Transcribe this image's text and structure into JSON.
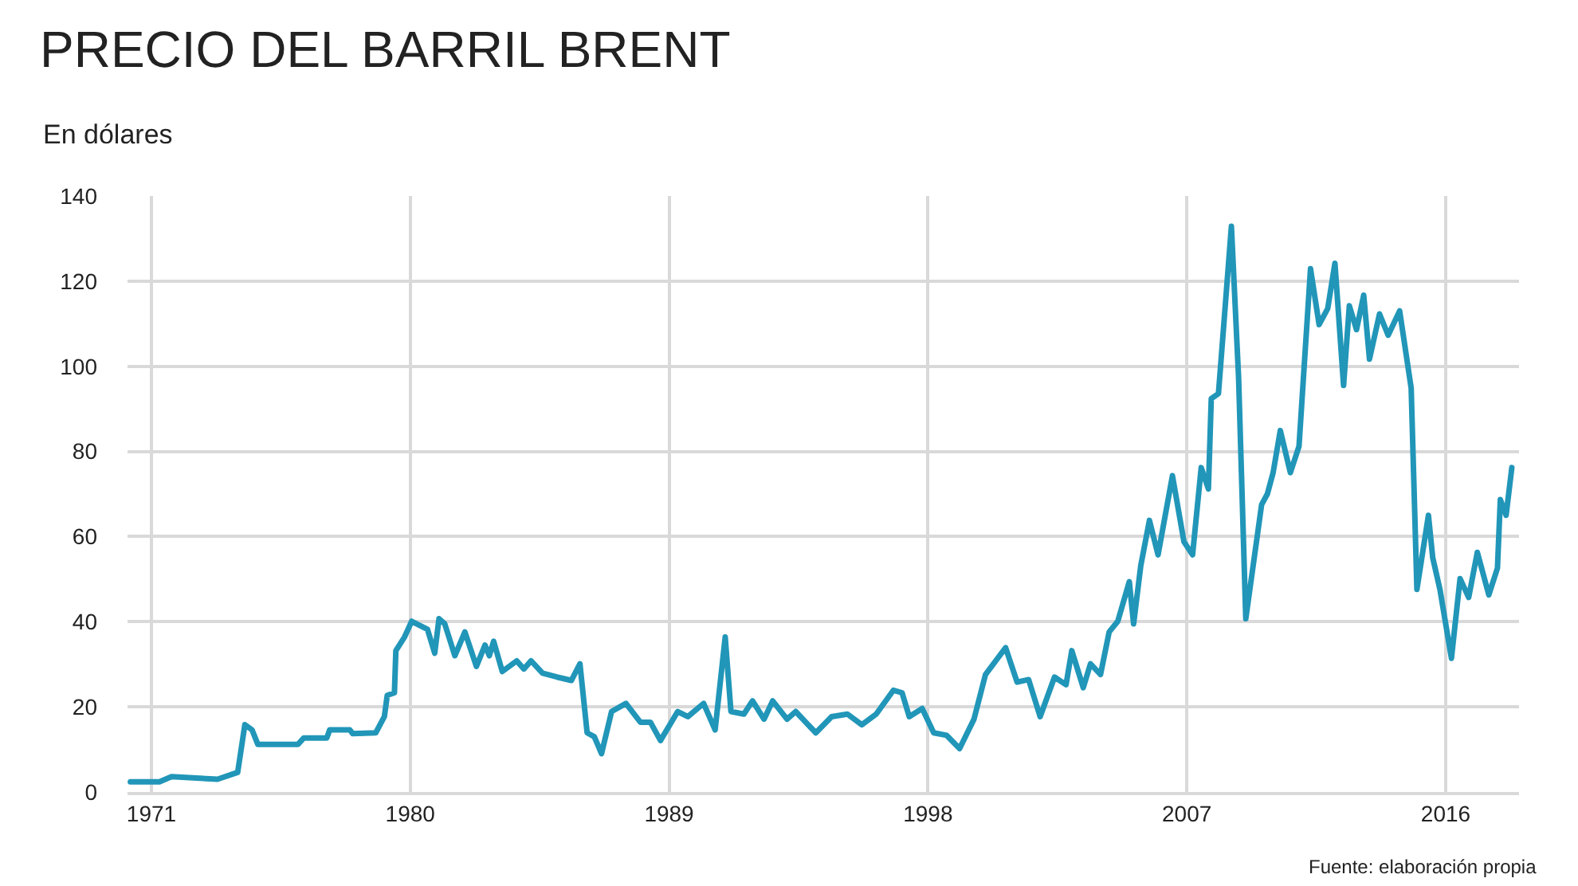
{
  "chart_data": {
    "type": "line",
    "title": "PRECIO DEL BARRIL BRENT",
    "subtitle": "En dólares",
    "annotations": [
      "Fuente: elaboración propia"
    ],
    "x": [
      1970.27,
      1971.28,
      1971.7,
      1973.3,
      1974.0,
      1974.25,
      1974.5,
      1974.7,
      1976.1,
      1976.3,
      1977.1,
      1977.2,
      1977.9,
      1978.0,
      1978.8,
      1979.1,
      1979.2,
      1979.45,
      1979.5,
      1979.8,
      1980.05,
      1980.6,
      1980.85,
      1981.0,
      1981.2,
      1981.55,
      1981.9,
      1982.3,
      1982.6,
      1982.75,
      1982.9,
      1983.2,
      1983.7,
      1983.95,
      1984.2,
      1984.6,
      1985.1,
      1985.6,
      1985.9,
      1986.15,
      1986.4,
      1986.65,
      1987.0,
      1987.5,
      1988.0,
      1988.35,
      1988.7,
      1989.3,
      1989.65,
      1990.2,
      1990.6,
      1990.95,
      1991.15,
      1991.6,
      1991.9,
      1992.3,
      1992.6,
      1993.1,
      1993.4,
      1994.1,
      1994.65,
      1995.2,
      1995.7,
      1996.2,
      1996.8,
      1997.1,
      1997.35,
      1997.8,
      1998.2,
      1998.65,
      1999.1,
      1999.6,
      2000.0,
      2000.7,
      2001.1,
      2001.5,
      2001.9,
      2002.4,
      2002.8,
      2003.0,
      2003.4,
      2003.65,
      2004.0,
      2004.3,
      2004.6,
      2005.0,
      2005.15,
      2005.4,
      2005.7,
      2006.0,
      2006.5,
      2006.9,
      2007.2,
      2007.5,
      2007.75,
      2007.85,
      2008.1,
      2008.55,
      2008.8,
      2009.05,
      2009.6,
      2009.8,
      2010.0,
      2010.25,
      2010.6,
      2010.9,
      2011.3,
      2011.6,
      2011.9,
      2012.15,
      2012.45,
      2012.65,
      2012.9,
      2013.15,
      2013.35,
      2013.7,
      2014.0,
      2014.4,
      2014.8,
      2015.0,
      2015.4,
      2015.55,
      2015.8,
      2016.2,
      2016.5,
      2016.8,
      2017.1,
      2017.5,
      2017.8,
      2017.9,
      2018.1,
      2018.3
    ],
    "series": [
      {
        "color": "#2196b8",
        "values": [
          2.4,
          2.4,
          3.6,
          3.0,
          4.6,
          15.8,
          14.6,
          11.2,
          11.2,
          12.7,
          12.7,
          14.6,
          14.6,
          13.7,
          13.9,
          17.7,
          22.7,
          23.3,
          33.2,
          36.4,
          40.1,
          38.2,
          32.6,
          40.7,
          39.5,
          32.0,
          37.6,
          29.5,
          34.5,
          32.0,
          35.4,
          28.3,
          30.8,
          28.9,
          30.8,
          27.9,
          27.0,
          26.2,
          30.1,
          13.9,
          13.0,
          9.0,
          18.9,
          20.8,
          16.4,
          16.4,
          12.1,
          18.9,
          17.7,
          20.8,
          14.6,
          36.4,
          18.9,
          18.3,
          21.4,
          17.1,
          21.4,
          17.1,
          18.9,
          13.9,
          17.7,
          18.3,
          15.8,
          18.3,
          23.9,
          23.3,
          17.7,
          19.6,
          13.9,
          13.3,
          10.2,
          17.1,
          27.6,
          33.9,
          25.8,
          26.4,
          17.7,
          27.0,
          25.2,
          33.2,
          24.5,
          30.1,
          27.6,
          37.6,
          40.1,
          49.4,
          39.5,
          53.2,
          63.8,
          55.7,
          74.3,
          58.8,
          55.7,
          76.2,
          71.2,
          92.4,
          93.6,
          132.9,
          97.4,
          40.7,
          67.5,
          70.0,
          75.0,
          84.9,
          75.0,
          81.2,
          122.9,
          109.8,
          113.6,
          124.2,
          95.5,
          114.2,
          108.6,
          116.7,
          101.7,
          112.3,
          107.3,
          113.0,
          94.9,
          47.6,
          65.0,
          55.0,
          47.6,
          31.4,
          50.1,
          45.7,
          56.3,
          46.3,
          52.6,
          68.7,
          65.0,
          76.2
        ]
      }
    ],
    "xlim": [
      1970.17,
      2018.55
    ],
    "ylim": [
      0,
      140
    ],
    "xticks": [
      1971,
      1980,
      1989,
      1998,
      2007,
      2016
    ],
    "yticks": [
      0,
      20,
      40,
      60,
      80,
      100,
      120,
      140
    ],
    "grid": true,
    "marker": "none",
    "line_style": "solid"
  }
}
